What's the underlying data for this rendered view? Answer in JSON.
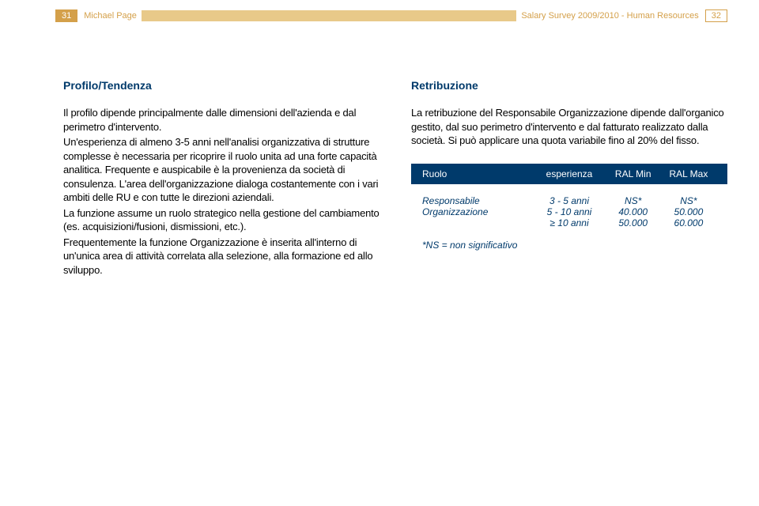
{
  "header": {
    "left_page": "31",
    "left_text": "Michael Page",
    "right_text": "Salary Survey 2009/2010 - Human Resources",
    "right_page": "32",
    "bar_color": "#e8c989",
    "accent_color": "#d4a04a"
  },
  "left_col": {
    "title": "Profilo/Tendenza",
    "body": "Il profilo dipende principalmente dalle dimensioni dell'azienda e dal perimetro d'intervento.\nUn'esperienza di almeno 3-5 anni nell'analisi organizzativa di strutture complesse è necessaria per ricoprire il ruolo unita ad una forte capacità analitica. Frequente e auspicabile è la provenienza da società di consulenza. L'area dell'organizzazione dialoga costantemente con i vari ambiti delle RU e con tutte le direzioni aziendali.\nLa funzione assume un ruolo strategico nella gestione del cambiamento (es. acquisizioni/fusioni, dismissioni, etc.).\nFrequentemente la funzione Organizzazione è inserita all'interno di un'unica area di attività correlata alla selezione, alla formazione ed allo sviluppo."
  },
  "right_col": {
    "title": "Retribuzione",
    "body": "La retribuzione del Responsabile Organizzazione dipende dall'organico gestito, dal suo perimetro d'intervento e dal fatturato realizzato dalla società. Si può applicare una quota variabile fino al 20% del fisso."
  },
  "table": {
    "header_bg": "#003a6b",
    "text_color": "#003a6b",
    "columns": {
      "role": "Ruolo",
      "exp": "esperienza",
      "min": "RAL Min",
      "max": "RAL Max"
    },
    "row": {
      "role": "Responsabile Organizzazione",
      "exp": [
        "3 - 5 anni",
        "5 - 10 anni",
        "≥ 10 anni"
      ],
      "min": [
        "NS*",
        "40.000",
        "50.000"
      ],
      "max": [
        "NS*",
        "50.000",
        "60.000"
      ]
    },
    "footnote": "*NS = non significativo"
  }
}
